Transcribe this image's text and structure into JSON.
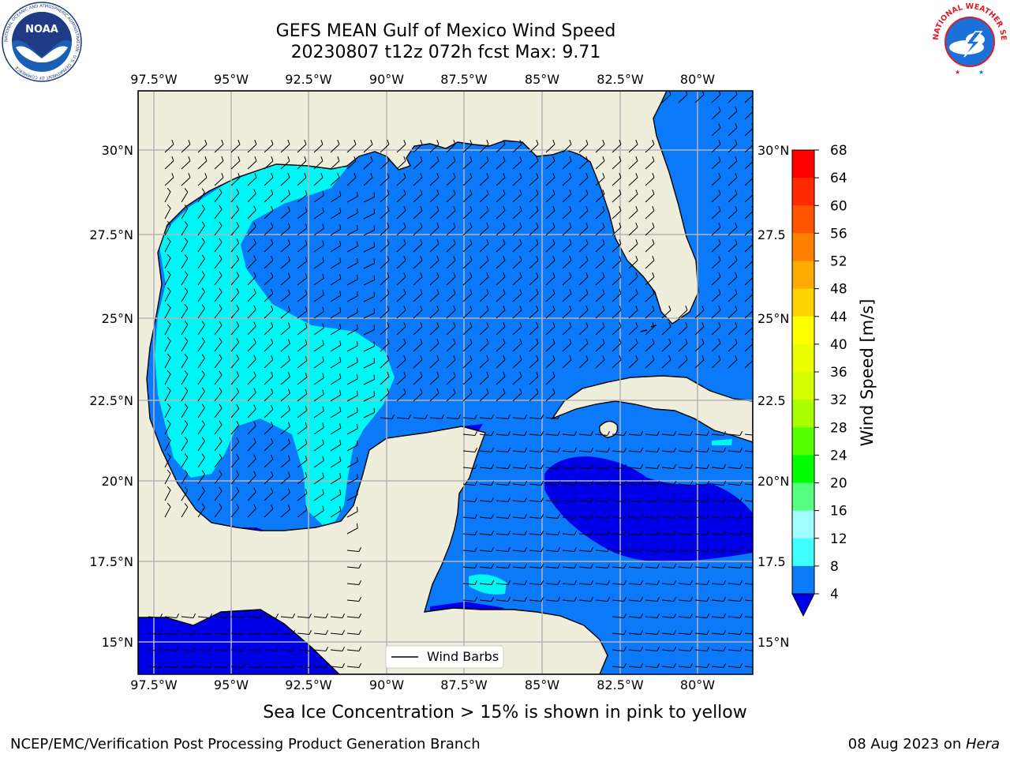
{
  "header": {
    "title_line1": "GEFS MEAN Gulf of Mexico Wind Speed",
    "title_line2": "20230807 t12z 072h fcst   Max: 9.71"
  },
  "map": {
    "lon_labels": [
      "97.5°W",
      "95°W",
      "92.5°W",
      "90°W",
      "87.5°W",
      "85°W",
      "82.5°W",
      "80°W"
    ],
    "lat_labels": [
      "30°N",
      "27.5°N",
      "25°N",
      "22.5°N",
      "20°N",
      "17.5°N",
      "15°N"
    ],
    "right_lat_labels": [
      "30°N",
      "27.5",
      "25°N",
      "22.5",
      "20°N",
      "17.5",
      "15°N"
    ],
    "legend_label": "Wind Barbs",
    "colors": {
      "land": "#efeedc",
      "ocean_4_8": "#0a7afa",
      "ocean_8_12": "#00f5f5",
      "ocean_lt4": "#0000e8",
      "grid": "#b4b4b4"
    }
  },
  "colorbar": {
    "label": "Wind Speed [m/s]",
    "ticks": [
      "68",
      "64",
      "60",
      "56",
      "52",
      "48",
      "44",
      "40",
      "36",
      "32",
      "28",
      "24",
      "20",
      "16",
      "12",
      "8",
      "4"
    ],
    "colors": [
      "#ff0000",
      "#ff2a00",
      "#ff5500",
      "#ff7f00",
      "#ffaa00",
      "#ffd400",
      "#ffff00",
      "#eaff00",
      "#d5ff00",
      "#aaff00",
      "#55ff00",
      "#00ff00",
      "#55ff80",
      "#a0ffff",
      "#40ffff",
      "#00f5f5",
      "#0a7afa"
    ],
    "extend_color": "#0000e8"
  },
  "subtitle": "Sea Ice Concentration > 15% is shown in pink to yellow",
  "footer": {
    "left": "NCEP/EMC/Verification Post Processing Product Generation Branch",
    "right_date": "08 Aug 2023 on ",
    "right_host": "Hera"
  },
  "logos": {
    "noaa_text": "NOAA",
    "noaa_ring": "NATIONAL OCEANIC AND ATMOSPHERIC ADMINISTRATION · U.S. DEPARTMENT OF COMMERCE",
    "nws_ring": "NATIONAL WEATHER SERVICE"
  }
}
